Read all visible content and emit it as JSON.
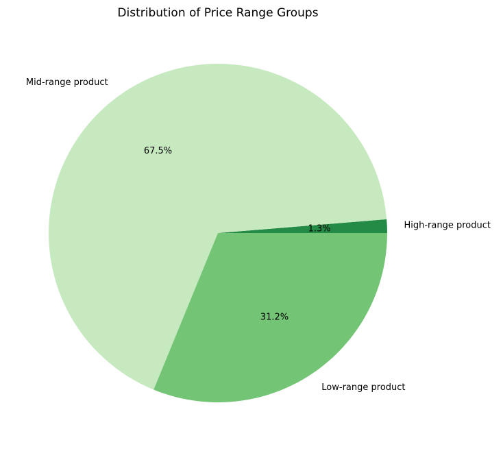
{
  "chart_data": {
    "type": "pie",
    "title": "Distribution of Price Range Groups",
    "start_angle_deg": 0,
    "direction": "counterclockwise",
    "slices": [
      {
        "label": "High-range product",
        "value": 1.3,
        "pct_label": "1.3%",
        "color": "#238b45"
      },
      {
        "label": "Mid-range product",
        "value": 67.5,
        "pct_label": "67.5%",
        "color": "#c7e9c0"
      },
      {
        "label": "Low-range product",
        "value": 31.2,
        "pct_label": "31.2%",
        "color": "#74c476"
      }
    ]
  }
}
